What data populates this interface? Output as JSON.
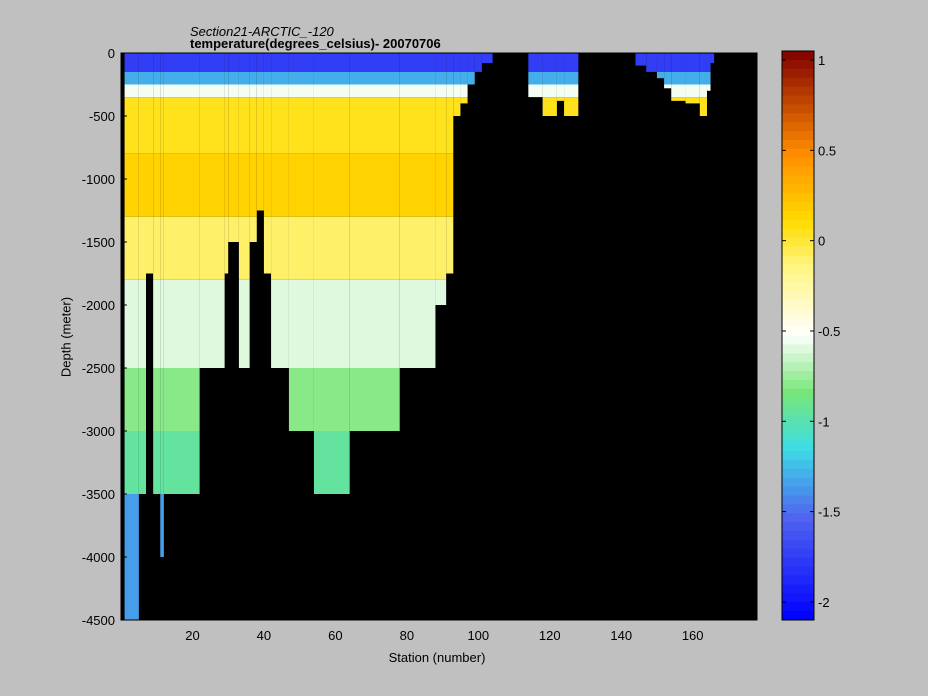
{
  "chart_data": {
    "type": "heatmap",
    "title": "Section21-ARCTIC_-120",
    "subtitle": "temperature(degrees_celsius)- 20070706",
    "xlabel": "Station (number)",
    "ylabel": "Depth (meter)",
    "xlim": [
      0,
      178
    ],
    "ylim": [
      -4500,
      0
    ],
    "xticks": [
      "20",
      "40",
      "60",
      "80",
      "100",
      "120",
      "140",
      "160"
    ],
    "yticks": [
      "0",
      "-500",
      "-1000",
      "-1500",
      "-2000",
      "-2500",
      "-3000",
      "-3500",
      "-4000",
      "-4500"
    ],
    "colorbar": {
      "range": [
        -2.1,
        1.05
      ],
      "ticks": [
        "1",
        "0.5",
        "0",
        "-0.5",
        "-1",
        "-1.5",
        "-2"
      ],
      "colormap": "jet-like"
    },
    "background_color": "#000000",
    "temperature_layers": [
      {
        "depth": [
          0,
          150
        ],
        "temp": -1.75
      },
      {
        "depth": [
          150,
          250
        ],
        "temp": -1.3
      },
      {
        "depth": [
          250,
          350
        ],
        "temp": -0.55
      },
      {
        "depth": [
          350,
          800
        ],
        "temp": 0.05
      },
      {
        "depth": [
          800,
          1300
        ],
        "temp": 0.15
      },
      {
        "depth": [
          1300,
          1800
        ],
        "temp": -0.1
      },
      {
        "depth": [
          1800,
          2500
        ],
        "temp": -0.6
      },
      {
        "depth": [
          2500,
          3000
        ],
        "temp": -0.8
      },
      {
        "depth": [
          3000,
          3500
        ],
        "temp": -0.95
      },
      {
        "depth": [
          3500,
          4500
        ],
        "temp": -1.35
      }
    ],
    "columns": [
      {
        "x": [
          1,
          5
        ],
        "depth_max": 4500
      },
      {
        "x": [
          5,
          7
        ],
        "depth_max": 3500
      },
      {
        "x": [
          7,
          9
        ],
        "depth_max": 1750
      },
      {
        "x": [
          9,
          11
        ],
        "depth_max": 3500
      },
      {
        "x": [
          11,
          12
        ],
        "depth_max": 4000
      },
      {
        "x": [
          12,
          22
        ],
        "depth_max": 3500
      },
      {
        "x": [
          22,
          29
        ],
        "depth_max": 2500
      },
      {
        "x": [
          29,
          30
        ],
        "depth_max": 1750
      },
      {
        "x": [
          30,
          33
        ],
        "depth_max": 1500
      },
      {
        "x": [
          33,
          36
        ],
        "depth_max": 2500
      },
      {
        "x": [
          36,
          38
        ],
        "depth_max": 1500
      },
      {
        "x": [
          38,
          40
        ],
        "depth_max": 1250
      },
      {
        "x": [
          40,
          42
        ],
        "depth_max": 1750
      },
      {
        "x": [
          42,
          47
        ],
        "depth_max": 2500
      },
      {
        "x": [
          47,
          54
        ],
        "depth_max": 3000
      },
      {
        "x": [
          54,
          64
        ],
        "depth_max": 3500
      },
      {
        "x": [
          64,
          78
        ],
        "depth_max": 3000
      },
      {
        "x": [
          78,
          88
        ],
        "depth_max": 2500
      },
      {
        "x": [
          88,
          91
        ],
        "depth_max": 2000
      },
      {
        "x": [
          91,
          93
        ],
        "depth_max": 1750
      },
      {
        "x": [
          93,
          95
        ],
        "depth_max": 500
      },
      {
        "x": [
          95,
          97
        ],
        "depth_max": 400
      },
      {
        "x": [
          97,
          99
        ],
        "depth_max": 250
      },
      {
        "x": [
          99,
          101
        ],
        "depth_max": 150
      },
      {
        "x": [
          101,
          104
        ],
        "depth_max": 80
      },
      {
        "x": [
          114,
          118
        ],
        "depth_max": 350
      },
      {
        "x": [
          118,
          122
        ],
        "depth_max": 500
      },
      {
        "x": [
          122,
          124
        ],
        "depth_max": 380
      },
      {
        "x": [
          124,
          128
        ],
        "depth_max": 500
      },
      {
        "x": [
          144,
          147
        ],
        "depth_max": 100
      },
      {
        "x": [
          147,
          150
        ],
        "depth_max": 150
      },
      {
        "x": [
          150,
          152
        ],
        "depth_max": 200
      },
      {
        "x": [
          152,
          154
        ],
        "depth_max": 280
      },
      {
        "x": [
          154,
          158
        ],
        "depth_max": 380
      },
      {
        "x": [
          158,
          162
        ],
        "depth_max": 400
      },
      {
        "x": [
          162,
          164
        ],
        "depth_max": 500
      },
      {
        "x": [
          164,
          165
        ],
        "depth_max": 300
      },
      {
        "x": [
          165,
          166
        ],
        "depth_max": 80
      }
    ]
  }
}
